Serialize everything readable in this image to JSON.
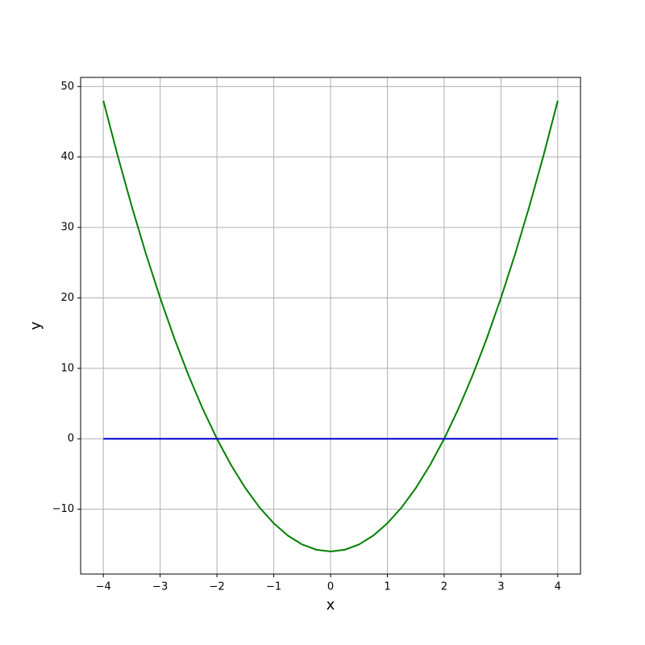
{
  "chart_data": {
    "type": "line",
    "xlabel": "x",
    "ylabel": "y",
    "x": [
      -4,
      -3.75,
      -3.5,
      -3.25,
      -3,
      -2.75,
      -2.5,
      -2.25,
      -2,
      -1.75,
      -1.5,
      -1.25,
      -1,
      -0.75,
      -0.5,
      -0.25,
      0,
      0.25,
      0.5,
      0.75,
      1,
      1.25,
      1.5,
      1.75,
      2,
      2.25,
      2.5,
      2.75,
      3,
      3.25,
      3.5,
      3.75,
      4
    ],
    "series": [
      {
        "color": "#008000",
        "values": [
          48,
          40.25,
          33,
          26.25,
          20,
          14.25,
          9,
          4.25,
          0,
          -3.75,
          -7,
          -9.75,
          -12,
          -13.75,
          -15,
          -15.75,
          -16,
          -15.75,
          -15,
          -13.75,
          -12,
          -9.75,
          -7,
          -3.75,
          0,
          4.25,
          9,
          14.25,
          20,
          26.25,
          33,
          40.25,
          48
        ]
      },
      {
        "color": "#0000cc",
        "values": [
          0,
          0,
          0,
          0,
          0,
          0,
          0,
          0,
          0,
          0,
          0,
          0,
          0,
          0,
          0,
          0,
          0,
          0,
          0,
          0,
          0,
          0,
          0,
          0,
          0,
          0,
          0,
          0,
          0,
          0,
          0,
          0,
          0
        ]
      }
    ],
    "xlim": [
      -4.4,
      4.4
    ],
    "ylim": [
      -19.2,
      51.3
    ],
    "xticks": [
      {
        "value": -4,
        "label": "−4"
      },
      {
        "value": -3,
        "label": "−3"
      },
      {
        "value": -2,
        "label": "−2"
      },
      {
        "value": -1,
        "label": "−1"
      },
      0,
      1,
      2,
      3,
      4
    ],
    "yticks": [
      {
        "value": -10,
        "label": "−10"
      },
      0,
      10,
      20,
      30,
      40,
      50
    ],
    "grid": true
  }
}
